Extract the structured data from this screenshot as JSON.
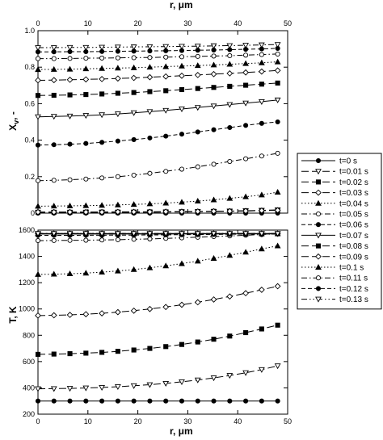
{
  "figure": {
    "top_axis_label": "r, μm",
    "bottom_axis_label": "r, μm"
  },
  "chart_data": [
    {
      "type": "line",
      "panel": "top",
      "xlabel": "r, μm",
      "ylabel": "Xv, -",
      "xlim": [
        0,
        50
      ],
      "ylim": [
        0,
        1.0
      ],
      "x_ticks": [
        "0",
        "10",
        "20",
        "30",
        "40",
        "50"
      ],
      "y_ticks": [
        "0",
        "0.2",
        "0.4",
        "0.6",
        "0.8",
        "1.0"
      ],
      "x": [
        0,
        3.2,
        6.4,
        9.6,
        12.8,
        16,
        19.2,
        22.4,
        25.6,
        28.8,
        32,
        35.2,
        38.4,
        41.6,
        44.8,
        48
      ],
      "series": [
        {
          "name": "t=0 s",
          "values": [
            0,
            0,
            0,
            0,
            0,
            0,
            0,
            0,
            0,
            0,
            0,
            0,
            0,
            0,
            0,
            0
          ]
        },
        {
          "name": "t=0.01 s",
          "values": [
            0.003,
            0.003,
            0.003,
            0.004,
            0.004,
            0.004,
            0.005,
            0.005,
            0.006,
            0.007,
            0.008,
            0.009,
            0.011,
            0.013,
            0.015,
            0.018
          ]
        },
        {
          "name": "t=0.02 s",
          "values": [
            0.005,
            0.005,
            0.005,
            0.005,
            0.006,
            0.006,
            0.006,
            0.007,
            0.007,
            0.008,
            0.009,
            0.01,
            0.011,
            0.012,
            0.014,
            0.016
          ]
        },
        {
          "name": "t=0.03 s",
          "values": [
            0.006,
            0.006,
            0.006,
            0.006,
            0.006,
            0.007,
            0.007,
            0.007,
            0.008,
            0.008,
            0.009,
            0.01,
            0.011,
            0.012,
            0.014,
            0.016
          ]
        },
        {
          "name": "t=0.04 s",
          "values": [
            0.038,
            0.039,
            0.04,
            0.041,
            0.043,
            0.045,
            0.048,
            0.051,
            0.055,
            0.06,
            0.066,
            0.073,
            0.081,
            0.09,
            0.1,
            0.115
          ]
        },
        {
          "name": "t=0.05 s",
          "values": [
            0.178,
            0.18,
            0.183,
            0.187,
            0.193,
            0.2,
            0.208,
            0.218,
            0.229,
            0.241,
            0.254,
            0.268,
            0.283,
            0.298,
            0.313,
            0.328
          ]
        },
        {
          "name": "t=0.06 s",
          "values": [
            0.373,
            0.375,
            0.378,
            0.382,
            0.388,
            0.395,
            0.403,
            0.412,
            0.422,
            0.433,
            0.445,
            0.457,
            0.469,
            0.481,
            0.492,
            0.5
          ]
        },
        {
          "name": "t=0.07 s",
          "values": [
            0.528,
            0.53,
            0.532,
            0.535,
            0.539,
            0.544,
            0.55,
            0.556,
            0.563,
            0.571,
            0.579,
            0.587,
            0.595,
            0.603,
            0.611,
            0.62
          ]
        },
        {
          "name": "t=0.08 s",
          "values": [
            0.645,
            0.646,
            0.648,
            0.65,
            0.653,
            0.657,
            0.661,
            0.666,
            0.671,
            0.677,
            0.683,
            0.689,
            0.695,
            0.701,
            0.707,
            0.713
          ]
        },
        {
          "name": "t=0.09 s",
          "values": [
            0.728,
            0.729,
            0.731,
            0.733,
            0.735,
            0.738,
            0.741,
            0.745,
            0.749,
            0.753,
            0.757,
            0.762,
            0.766,
            0.771,
            0.776,
            0.782
          ]
        },
        {
          "name": "t=0.1 s",
          "values": [
            0.787,
            0.788,
            0.789,
            0.791,
            0.793,
            0.795,
            0.797,
            0.8,
            0.803,
            0.806,
            0.809,
            0.812,
            0.816,
            0.82,
            0.824,
            0.829
          ]
        },
        {
          "name": "t=0.11 s",
          "values": [
            0.847,
            0.847,
            0.848,
            0.849,
            0.85,
            0.851,
            0.852,
            0.853,
            0.855,
            0.857,
            0.859,
            0.861,
            0.863,
            0.866,
            0.869,
            0.872
          ]
        },
        {
          "name": "t=0.12 s",
          "values": [
            0.884,
            0.884,
            0.885,
            0.885,
            0.886,
            0.887,
            0.888,
            0.889,
            0.89,
            0.891,
            0.893,
            0.894,
            0.896,
            0.898,
            0.9,
            0.903
          ]
        },
        {
          "name": "t=0.13 s",
          "values": [
            0.907,
            0.907,
            0.908,
            0.908,
            0.909,
            0.91,
            0.911,
            0.912,
            0.913,
            0.914,
            0.915,
            0.917,
            0.918,
            0.92,
            0.922,
            0.924
          ]
        }
      ]
    },
    {
      "type": "line",
      "panel": "bottom",
      "xlabel": "r, μm",
      "ylabel": "T, K",
      "xlim": [
        0,
        50
      ],
      "ylim": [
        200,
        1600
      ],
      "x_ticks": [
        "0",
        "10",
        "20",
        "30",
        "40",
        "50"
      ],
      "y_ticks": [
        "200",
        "400",
        "600",
        "800",
        "1000",
        "1200",
        "1400",
        "1600"
      ],
      "x": [
        0,
        3.2,
        6.4,
        9.6,
        12.8,
        16,
        19.2,
        22.4,
        25.6,
        28.8,
        32,
        35.2,
        38.4,
        41.6,
        44.8,
        48
      ],
      "series": [
        {
          "name": "t=0 s",
          "values": [
            300,
            300,
            300,
            300,
            300,
            300,
            300,
            300,
            300,
            300,
            300,
            300,
            300,
            300,
            300,
            300
          ]
        },
        {
          "name": "t=0.01 s",
          "values": [
            393,
            394,
            396,
            399,
            403,
            409,
            416,
            424,
            434,
            446,
            460,
            476,
            494,
            515,
            539,
            567
          ]
        },
        {
          "name": "t=0.02 s",
          "values": [
            655,
            657,
            660,
            664,
            670,
            678,
            688,
            700,
            714,
            730,
            749,
            770,
            794,
            820,
            848,
            877
          ]
        },
        {
          "name": "t=0.03 s",
          "values": [
            950,
            952,
            955,
            960,
            967,
            976,
            987,
            1000,
            1015,
            1032,
            1051,
            1072,
            1095,
            1120,
            1146,
            1173
          ]
        },
        {
          "name": "t=0.04 s",
          "values": [
            1263,
            1265,
            1268,
            1273,
            1280,
            1289,
            1300,
            1313,
            1328,
            1345,
            1364,
            1385,
            1408,
            1432,
            1457,
            1480
          ]
        },
        {
          "name": "t=0.05 s",
          "values": [
            1520,
            1521,
            1522,
            1523,
            1525,
            1527,
            1530,
            1533,
            1537,
            1541,
            1546,
            1551,
            1556,
            1561,
            1566,
            1571
          ]
        },
        {
          "name": "t=0.06 s",
          "values": [
            1560,
            1560,
            1560,
            1561,
            1561,
            1562,
            1562,
            1563,
            1564,
            1565,
            1566,
            1567,
            1568,
            1569,
            1570,
            1571
          ]
        },
        {
          "name": "t=0.07 s",
          "values": [
            1570,
            1570,
            1570,
            1570,
            1570,
            1570,
            1570,
            1570,
            1570,
            1571,
            1571,
            1571,
            1571,
            1571,
            1572,
            1572
          ]
        },
        {
          "name": "t=0.08 s",
          "values": [
            1572,
            1572,
            1572,
            1572,
            1572,
            1572,
            1572,
            1572,
            1572,
            1572,
            1572,
            1572,
            1572,
            1572,
            1572,
            1572
          ]
        },
        {
          "name": "t=0.09 s",
          "values": [
            1573,
            1573,
            1573,
            1573,
            1573,
            1573,
            1573,
            1573,
            1573,
            1573,
            1573,
            1573,
            1573,
            1573,
            1573,
            1573
          ]
        },
        {
          "name": "t=0.1 s",
          "values": [
            1573,
            1573,
            1573,
            1573,
            1573,
            1573,
            1573,
            1573,
            1573,
            1573,
            1573,
            1573,
            1573,
            1573,
            1573,
            1573
          ]
        },
        {
          "name": "t=0.11 s",
          "values": [
            1574,
            1574,
            1574,
            1574,
            1574,
            1574,
            1574,
            1574,
            1574,
            1574,
            1574,
            1574,
            1574,
            1574,
            1574,
            1574
          ]
        },
        {
          "name": "t=0.12 s",
          "values": [
            1574,
            1574,
            1574,
            1574,
            1574,
            1574,
            1574,
            1574,
            1574,
            1574,
            1574,
            1574,
            1574,
            1574,
            1574,
            1574
          ]
        },
        {
          "name": "t=0.13 s",
          "values": [
            1574,
            1574,
            1574,
            1574,
            1574,
            1574,
            1574,
            1574,
            1574,
            1574,
            1574,
            1574,
            1574,
            1574,
            1574,
            1574
          ]
        }
      ]
    }
  ],
  "legend": {
    "placement": "right",
    "entries": [
      {
        "label": "t=0 s",
        "marker": "circle-filled",
        "dash": "solid"
      },
      {
        "label": "t=0.01 s",
        "marker": "triangle-down-open",
        "dash": "longdash"
      },
      {
        "label": "t=0.02 s",
        "marker": "square-filled",
        "dash": "longdash"
      },
      {
        "label": "t=0.03 s",
        "marker": "diamond-open",
        "dash": "longdash"
      },
      {
        "label": "t=0.04 s",
        "marker": "triangle-up-filled",
        "dash": "dotted"
      },
      {
        "label": "t=0.05 s",
        "marker": "circle-open",
        "dash": "dashdot"
      },
      {
        "label": "t=0.06 s",
        "marker": "circle-filled",
        "dash": "dashed"
      },
      {
        "label": "t=0.07 s",
        "marker": "triangle-down-open",
        "dash": "solid"
      },
      {
        "label": "t=0.08 s",
        "marker": "square-filled",
        "dash": "longdash"
      },
      {
        "label": "t=0.09 s",
        "marker": "diamond-open",
        "dash": "longdash"
      },
      {
        "label": "t=0.1 s",
        "marker": "triangle-up-filled",
        "dash": "dotted"
      },
      {
        "label": "t=0.11 s",
        "marker": "circle-open",
        "dash": "dashdot"
      },
      {
        "label": "t=0.12 s",
        "marker": "circle-filled",
        "dash": "dashed"
      },
      {
        "label": "t=0.13 s",
        "marker": "triangle-down-open",
        "dash": "dashdotdot"
      }
    ]
  }
}
